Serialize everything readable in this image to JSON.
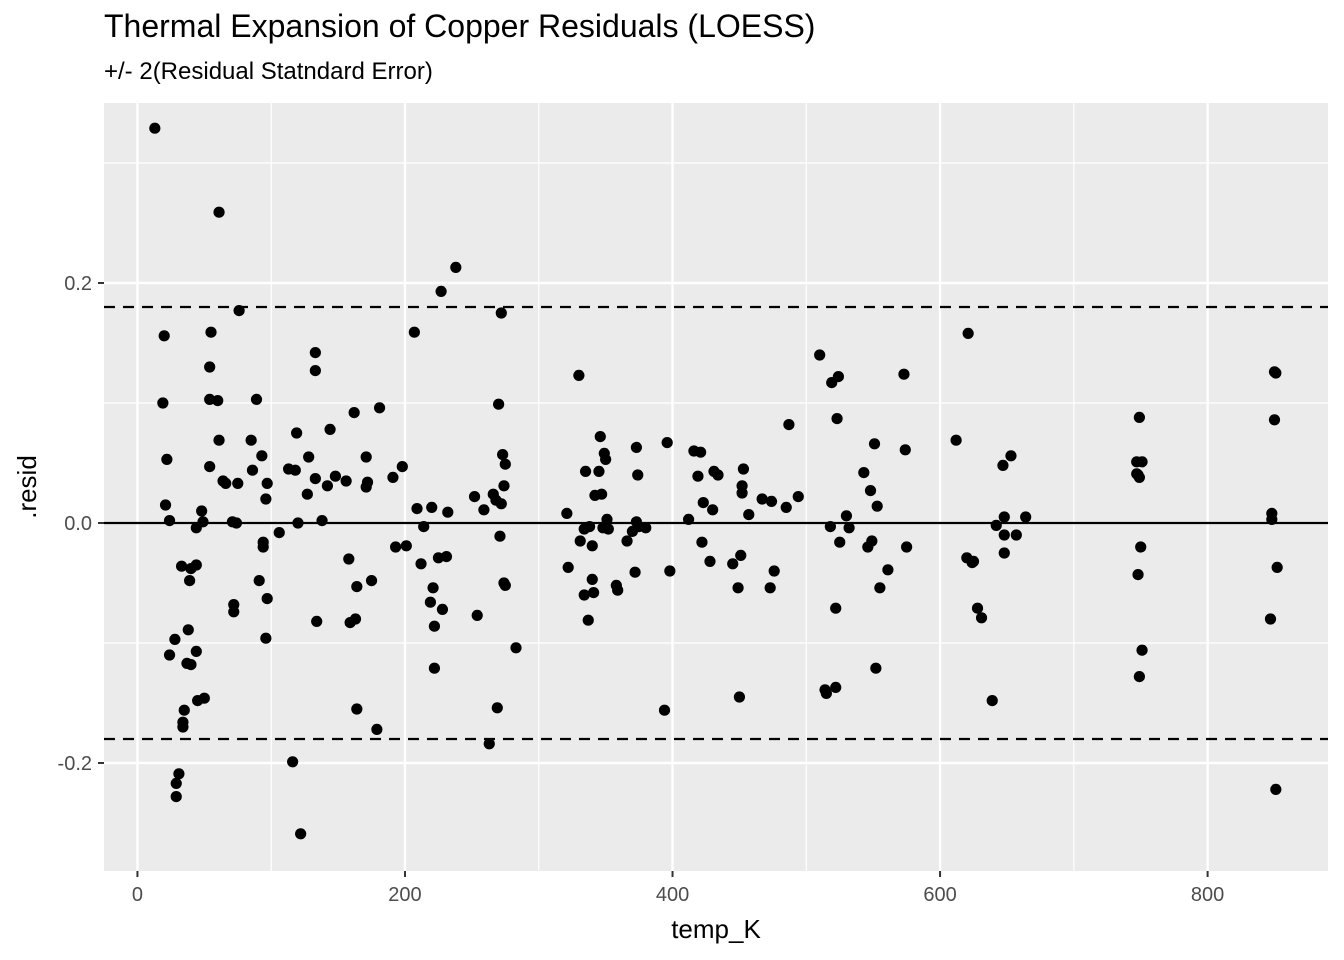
{
  "chart_data": {
    "type": "scatter",
    "title": "Thermal Expansion of Copper Residuals (LOESS)",
    "subtitle": "+/- 2(Residual Statndard Error)",
    "xlabel": "temp_K",
    "ylabel": ".resid",
    "xlim": [
      -25,
      890
    ],
    "ylim": [
      -0.29,
      0.35
    ],
    "x_ticks": [
      0,
      200,
      400,
      600,
      800
    ],
    "x_tick_labels": [
      "0",
      "200",
      "400",
      "600",
      "800"
    ],
    "y_ticks": [
      -0.2,
      0.0,
      0.2
    ],
    "y_tick_labels": [
      "-0.2",
      "0.0",
      "0.2"
    ],
    "grid": true,
    "reference_lines": [
      {
        "y": 0.0,
        "style": "solid"
      },
      {
        "y": 0.18,
        "style": "dashed"
      },
      {
        "y": -0.18,
        "style": "dashed"
      }
    ],
    "points": [
      [
        13,
        0.329
      ],
      [
        19,
        0.1
      ],
      [
        20,
        0.156
      ],
      [
        21,
        0.015
      ],
      [
        22,
        0.053
      ],
      [
        24,
        0.002
      ],
      [
        24,
        -0.11
      ],
      [
        28,
        -0.097
      ],
      [
        29,
        -0.228
      ],
      [
        29,
        -0.217
      ],
      [
        31,
        -0.209
      ],
      [
        33,
        -0.036
      ],
      [
        34,
        -0.166
      ],
      [
        34,
        -0.17
      ],
      [
        35,
        -0.156
      ],
      [
        37,
        -0.117
      ],
      [
        38,
        -0.089
      ],
      [
        39,
        -0.048
      ],
      [
        40,
        -0.118
      ],
      [
        40,
        -0.038
      ],
      [
        44,
        -0.004
      ],
      [
        44,
        -0.107
      ],
      [
        44,
        -0.035
      ],
      [
        45,
        -0.148
      ],
      [
        48,
        0.01
      ],
      [
        49,
        0.001
      ],
      [
        50,
        -0.146
      ],
      [
        54,
        0.047
      ],
      [
        54,
        0.103
      ],
      [
        54,
        0.13
      ],
      [
        55,
        0.159
      ],
      [
        60,
        0.102
      ],
      [
        61,
        0.069
      ],
      [
        61,
        0.259
      ],
      [
        64,
        0.035
      ],
      [
        66,
        0.033
      ],
      [
        71,
        0.001
      ],
      [
        72,
        -0.074
      ],
      [
        72,
        -0.068
      ],
      [
        74,
        0.0
      ],
      [
        75,
        0.033
      ],
      [
        76,
        0.177
      ],
      [
        85,
        0.069
      ],
      [
        86,
        0.044
      ],
      [
        89,
        0.103
      ],
      [
        91,
        -0.048
      ],
      [
        93,
        0.056
      ],
      [
        94,
        -0.016
      ],
      [
        94,
        -0.02
      ],
      [
        96,
        -0.096
      ],
      [
        96,
        0.02
      ],
      [
        97,
        -0.063
      ],
      [
        97,
        0.033
      ],
      [
        106,
        -0.008
      ],
      [
        113,
        0.045
      ],
      [
        116,
        -0.199
      ],
      [
        118,
        0.044
      ],
      [
        119,
        0.075
      ],
      [
        120,
        0.0
      ],
      [
        122,
        -0.259
      ],
      [
        127,
        0.024
      ],
      [
        128,
        0.055
      ],
      [
        133,
        0.037
      ],
      [
        133,
        0.142
      ],
      [
        133,
        0.127
      ],
      [
        134,
        -0.082
      ],
      [
        138,
        0.002
      ],
      [
        142,
        0.031
      ],
      [
        144,
        0.078
      ],
      [
        148,
        0.039
      ],
      [
        156,
        0.035
      ],
      [
        158,
        -0.03
      ],
      [
        159,
        -0.083
      ],
      [
        162,
        0.092
      ],
      [
        163,
        -0.08
      ],
      [
        164,
        -0.053
      ],
      [
        164,
        -0.155
      ],
      [
        171,
        0.055
      ],
      [
        171,
        0.03
      ],
      [
        172,
        0.034
      ],
      [
        175,
        -0.048
      ],
      [
        179,
        -0.172
      ],
      [
        181,
        0.096
      ],
      [
        191,
        0.038
      ],
      [
        193,
        -0.02
      ],
      [
        198,
        0.047
      ],
      [
        201,
        -0.019
      ],
      [
        207,
        0.159
      ],
      [
        209,
        0.012
      ],
      [
        212,
        -0.034
      ],
      [
        214,
        -0.003
      ],
      [
        219,
        -0.066
      ],
      [
        220,
        0.013
      ],
      [
        221,
        -0.054
      ],
      [
        222,
        -0.086
      ],
      [
        222,
        -0.121
      ],
      [
        225,
        -0.029
      ],
      [
        227,
        0.193
      ],
      [
        228,
        -0.072
      ],
      [
        231,
        -0.028
      ],
      [
        232,
        0.009
      ],
      [
        238,
        0.213
      ],
      [
        252,
        0.022
      ],
      [
        254,
        -0.077
      ],
      [
        259,
        0.011
      ],
      [
        263,
        -0.184
      ],
      [
        266,
        0.024
      ],
      [
        268,
        0.019
      ],
      [
        269,
        -0.154
      ],
      [
        270,
        0.099
      ],
      [
        271,
        -0.011
      ],
      [
        272,
        0.016
      ],
      [
        272,
        0.175
      ],
      [
        273,
        0.057
      ],
      [
        274,
        -0.05
      ],
      [
        274,
        0.031
      ],
      [
        275,
        0.049
      ],
      [
        275,
        -0.052
      ],
      [
        283,
        -0.104
      ],
      [
        321,
        0.008
      ],
      [
        322,
        -0.037
      ],
      [
        330,
        0.123
      ],
      [
        331,
        -0.015
      ],
      [
        334,
        -0.06
      ],
      [
        334,
        -0.005
      ],
      [
        335,
        0.043
      ],
      [
        337,
        -0.081
      ],
      [
        338,
        -0.003
      ],
      [
        340,
        -0.019
      ],
      [
        340,
        -0.047
      ],
      [
        341,
        -0.058
      ],
      [
        342,
        0.023
      ],
      [
        345,
        0.043
      ],
      [
        346,
        0.072
      ],
      [
        347,
        0.024
      ],
      [
        348,
        -0.004
      ],
      [
        349,
        0.058
      ],
      [
        350,
        0.053
      ],
      [
        351,
        0.003
      ],
      [
        352,
        -0.005
      ],
      [
        358,
        -0.052
      ],
      [
        359,
        -0.056
      ],
      [
        366,
        -0.015
      ],
      [
        370,
        -0.007
      ],
      [
        372,
        -0.041
      ],
      [
        373,
        0.063
      ],
      [
        373,
        0.001
      ],
      [
        374,
        0.04
      ],
      [
        375,
        -0.003
      ],
      [
        380,
        -0.004
      ],
      [
        394,
        -0.156
      ],
      [
        396,
        0.067
      ],
      [
        398,
        -0.04
      ],
      [
        412,
        0.003
      ],
      [
        416,
        0.06
      ],
      [
        419,
        0.039
      ],
      [
        421,
        0.059
      ],
      [
        422,
        -0.016
      ],
      [
        423,
        0.017
      ],
      [
        428,
        -0.032
      ],
      [
        430,
        0.011
      ],
      [
        431,
        0.043
      ],
      [
        434,
        0.04
      ],
      [
        445,
        -0.034
      ],
      [
        449,
        -0.054
      ],
      [
        450,
        -0.145
      ],
      [
        451,
        -0.027
      ],
      [
        452,
        0.031
      ],
      [
        452,
        0.025
      ],
      [
        453,
        0.045
      ],
      [
        457,
        0.007
      ],
      [
        467,
        0.02
      ],
      [
        473,
        -0.054
      ],
      [
        474,
        0.018
      ],
      [
        476,
        -0.04
      ],
      [
        485,
        0.013
      ],
      [
        487,
        0.082
      ],
      [
        494,
        0.022
      ],
      [
        510,
        0.14
      ],
      [
        514,
        -0.139
      ],
      [
        515,
        -0.142
      ],
      [
        518,
        -0.003
      ],
      [
        519,
        0.117
      ],
      [
        522,
        -0.137
      ],
      [
        522,
        -0.071
      ],
      [
        523,
        0.087
      ],
      [
        524,
        0.122
      ],
      [
        525,
        -0.016
      ],
      [
        530,
        0.006
      ],
      [
        532,
        -0.004
      ],
      [
        543,
        0.042
      ],
      [
        546,
        -0.02
      ],
      [
        548,
        0.027
      ],
      [
        549,
        -0.015
      ],
      [
        551,
        0.066
      ],
      [
        552,
        -0.121
      ],
      [
        553,
        0.014
      ],
      [
        555,
        -0.054
      ],
      [
        561,
        -0.039
      ],
      [
        573,
        0.124
      ],
      [
        574,
        0.061
      ],
      [
        575,
        -0.02
      ],
      [
        612,
        0.069
      ],
      [
        620,
        -0.029
      ],
      [
        621,
        0.158
      ],
      [
        624,
        -0.033
      ],
      [
        625,
        -0.032
      ],
      [
        628,
        -0.071
      ],
      [
        631,
        -0.079
      ],
      [
        639,
        -0.148
      ],
      [
        642,
        -0.002
      ],
      [
        647,
        0.048
      ],
      [
        648,
        0.005
      ],
      [
        648,
        -0.025
      ],
      [
        648,
        -0.01
      ],
      [
        653,
        0.056
      ],
      [
        657,
        -0.01
      ],
      [
        664,
        0.005
      ],
      [
        747,
        0.051
      ],
      [
        747,
        0.041
      ],
      [
        748,
        -0.043
      ],
      [
        748,
        0.04
      ],
      [
        749,
        0.088
      ],
      [
        749,
        -0.128
      ],
      [
        749,
        0.038
      ],
      [
        750,
        -0.02
      ],
      [
        751,
        0.051
      ],
      [
        751,
        -0.106
      ],
      [
        847,
        -0.08
      ],
      [
        848,
        0.008
      ],
      [
        848,
        0.003
      ],
      [
        850,
        0.126
      ],
      [
        850,
        0.086
      ],
      [
        851,
        0.125
      ],
      [
        851,
        -0.222
      ],
      [
        852,
        -0.037
      ]
    ]
  }
}
